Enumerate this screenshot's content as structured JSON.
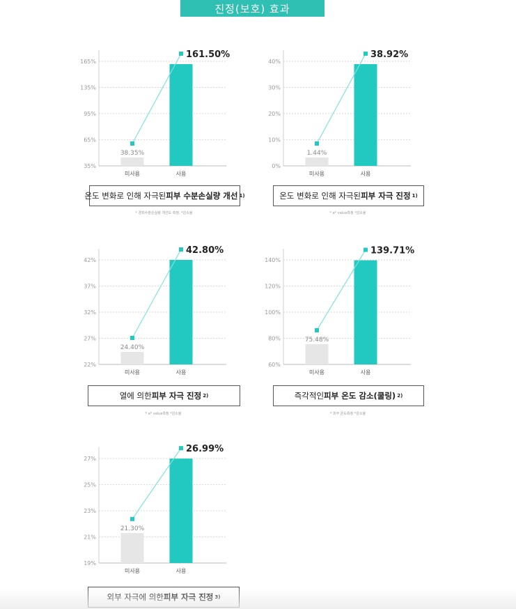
{
  "header": {
    "title": "진정(보호) 효과"
  },
  "colors": {
    "accent": "#22c9c0",
    "bar_unused": "#e6e6e6",
    "line": "#7fe3dc",
    "grid": "#d9d9d9"
  },
  "chart_data": [
    {
      "type": "bar",
      "categories": [
        "미사용",
        "사용"
      ],
      "values": [
        38.35,
        161.5
      ],
      "value_labels": [
        "38.35%",
        "161.50%"
      ],
      "yticks": [
        "165%",
        "135%",
        "95%",
        "65%",
        "35%"
      ],
      "caption": {
        "prefix": "온도 변화로 인해 자극된 ",
        "bold": "피부 수분손실량 개선",
        "sup": "1)"
      },
      "note": "* 경피수분손실량 개선도 측정, *감소율"
    },
    {
      "type": "bar",
      "categories": [
        "미사용",
        "사용"
      ],
      "values": [
        1.44,
        38.92
      ],
      "value_labels": [
        "1.44%",
        "38.92%"
      ],
      "yticks": [
        "40%",
        "30%",
        "20%",
        "10%",
        "0%"
      ],
      "caption": {
        "prefix": "온도 변화로 인해 자극된 ",
        "bold": "피부 자극 진정",
        "sup": "1)"
      },
      "note": "* a* value측정 *감소율"
    },
    {
      "type": "bar",
      "categories": [
        "미사용",
        "사용"
      ],
      "values": [
        24.4,
        42.8
      ],
      "value_labels": [
        "24.40%",
        "42.80%"
      ],
      "yticks": [
        "42%",
        "37%",
        "32%",
        "27%",
        "22%"
      ],
      "caption": {
        "prefix": "열에 의한 ",
        "bold": "피부 자극 진정",
        "sup": "2)"
      },
      "note": "* a* value측정 *감소율"
    },
    {
      "type": "bar",
      "categories": [
        "미사용",
        "사용"
      ],
      "values": [
        75.48,
        139.71
      ],
      "value_labels": [
        "75.48%",
        "139.71%"
      ],
      "yticks": [
        "140%",
        "120%",
        "100%",
        "80%",
        "60%"
      ],
      "caption": {
        "prefix": "즉각적인 ",
        "bold": "피부 온도 감소(쿨링)",
        "sup": "2)"
      },
      "note": "* 피부 온도측정 *감소율"
    },
    {
      "type": "bar",
      "categories": [
        "미사용",
        "사용"
      ],
      "values": [
        21.3,
        26.99
      ],
      "value_labels": [
        "21.30%",
        "26.99%"
      ],
      "yticks": [
        "27%",
        "25%",
        "23%",
        "21%",
        "19%"
      ],
      "caption": {
        "prefix": "외부 자극에 의한 ",
        "bold": "피부 자극 진정",
        "sup": "3)"
      },
      "note": ""
    }
  ]
}
